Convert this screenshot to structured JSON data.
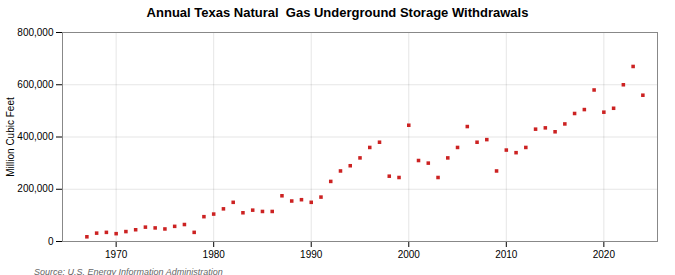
{
  "chart_data": {
    "type": "scatter",
    "title": "Annual Texas Natural  Gas Underground Storage Withdrawals",
    "ylabel": "Million Cubic Feet",
    "source": "Source: U.S. Energy Information Administration",
    "x": [
      1967,
      1968,
      1969,
      1970,
      1971,
      1972,
      1973,
      1974,
      1975,
      1976,
      1977,
      1978,
      1979,
      1980,
      1981,
      1982,
      1983,
      1984,
      1985,
      1986,
      1987,
      1988,
      1989,
      1990,
      1991,
      1992,
      1993,
      1994,
      1995,
      1996,
      1997,
      1998,
      1999,
      2000,
      2001,
      2002,
      2003,
      2004,
      2005,
      2006,
      2007,
      2008,
      2009,
      2010,
      2011,
      2012,
      2013,
      2014,
      2015,
      2016,
      2017,
      2018,
      2019,
      2020,
      2021,
      2022,
      2023,
      2024
    ],
    "values": [
      18000,
      32000,
      35000,
      30000,
      38000,
      45000,
      55000,
      52000,
      48000,
      58000,
      65000,
      35000,
      95000,
      105000,
      125000,
      150000,
      110000,
      120000,
      115000,
      115000,
      175000,
      155000,
      160000,
      150000,
      170000,
      230000,
      270000,
      290000,
      320000,
      360000,
      380000,
      250000,
      245000,
      445000,
      310000,
      300000,
      245000,
      320000,
      360000,
      440000,
      380000,
      390000,
      270000,
      350000,
      340000,
      360000,
      430000,
      435000,
      420000,
      450000,
      490000,
      505000,
      580000,
      495000,
      510000,
      600000,
      670000,
      560000
    ],
    "color": "#cc2222",
    "marker": "square",
    "xlim": [
      1964.5,
      2025.5
    ],
    "xticks": [
      1970,
      1980,
      1990,
      2000,
      2010,
      2020
    ],
    "ylim": [
      0,
      800000
    ],
    "yticks": [
      0,
      {
        "value": 200000,
        "label": "200,000"
      },
      {
        "value": 400000,
        "label": "400,000"
      },
      {
        "value": 600000,
        "label": "600,000"
      },
      {
        "value": 800000,
        "label": "800,000"
      }
    ],
    "grid": true
  }
}
